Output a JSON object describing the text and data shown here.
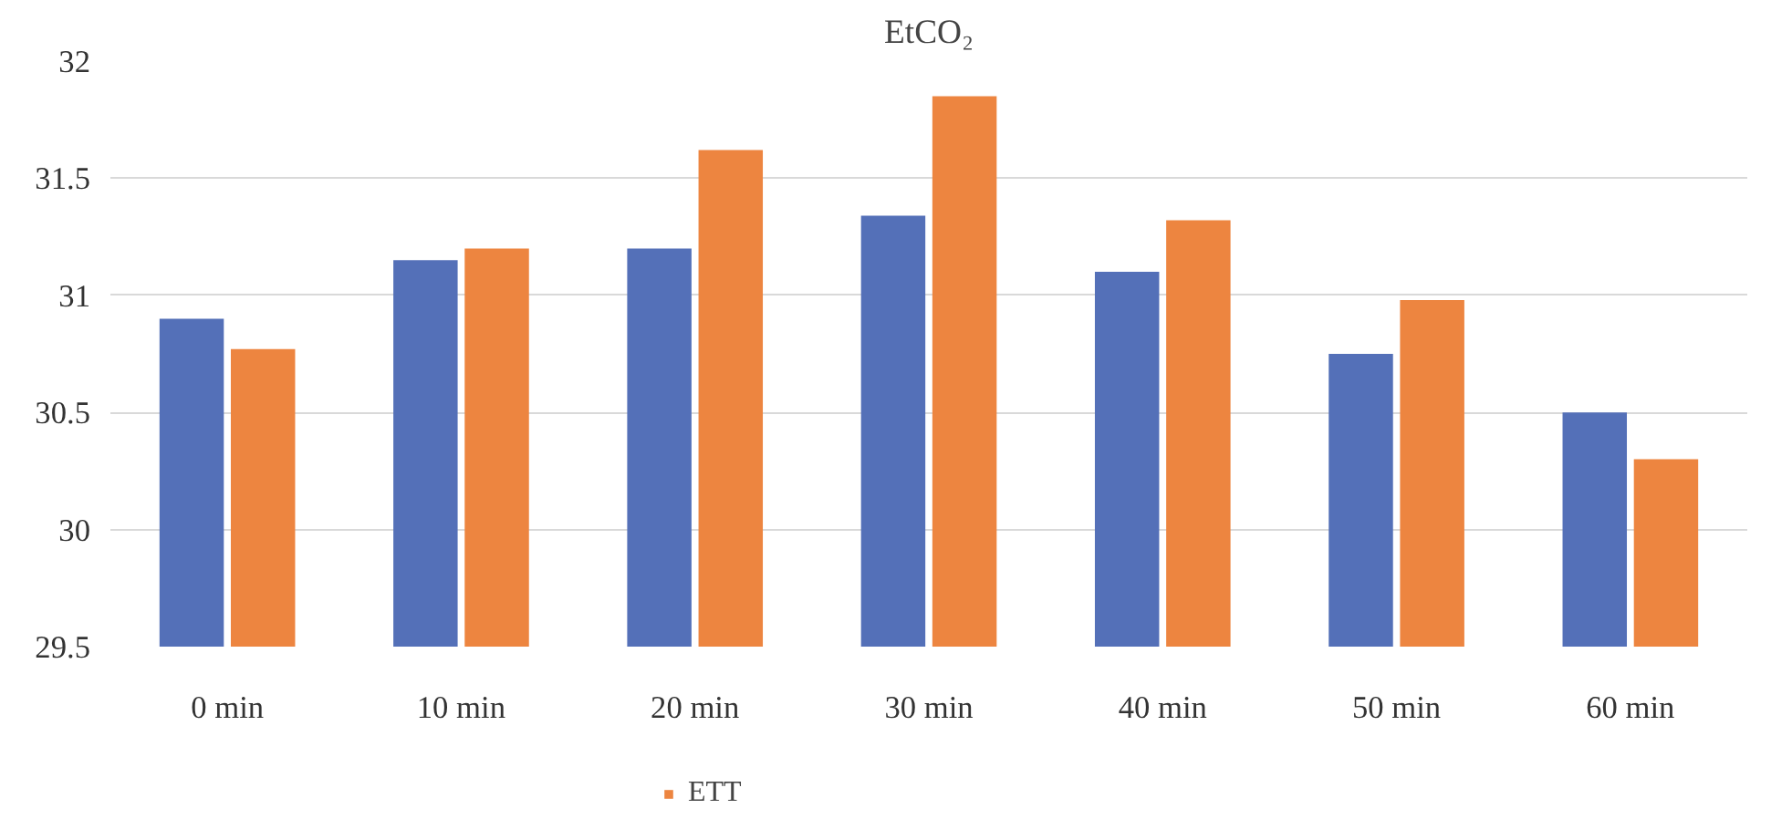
{
  "chart_data": {
    "type": "bar",
    "title": "EtCO₂",
    "categories": [
      "0 min",
      "10 min",
      "20 min",
      "30 min",
      "40 min",
      "50 min",
      "60 min"
    ],
    "series": [
      {
        "color": "#5470b8",
        "values": [
          30.9,
          31.15,
          31.2,
          31.34,
          31.1,
          30.75,
          30.5
        ]
      },
      {
        "name": "ETT",
        "color": "#ed8540",
        "values": [
          30.77,
          31.2,
          31.62,
          31.85,
          31.32,
          30.98,
          30.3
        ]
      }
    ],
    "ylim": [
      29.5,
      32
    ],
    "yticks": [
      29.5,
      30,
      30.5,
      31,
      31.5,
      32
    ],
    "grid": "y",
    "legend": "bottom"
  }
}
